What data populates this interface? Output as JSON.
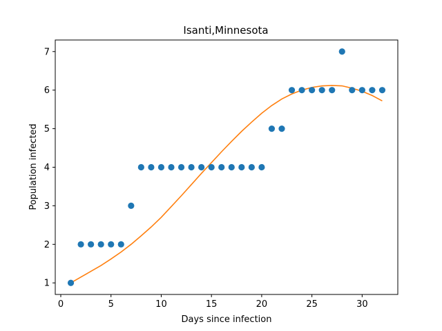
{
  "chart_data": {
    "type": "scatter",
    "title": "Isanti,Minnesota",
    "xlabel": "Days since infection",
    "ylabel": "Population infected",
    "xlim": [
      -0.55,
      33.55
    ],
    "ylim": [
      0.7,
      7.3
    ],
    "xticks": [
      0,
      5,
      10,
      15,
      20,
      25,
      30
    ],
    "yticks": [
      1,
      2,
      3,
      4,
      5,
      6,
      7
    ],
    "grid": false,
    "series": [
      {
        "kind": "scatter",
        "color": "#1f77b4",
        "x": [
          1,
          2,
          3,
          4,
          5,
          6,
          7,
          8,
          9,
          10,
          11,
          12,
          13,
          14,
          15,
          16,
          17,
          18,
          19,
          20,
          21,
          22,
          23,
          24,
          25,
          26,
          27,
          28,
          29,
          30,
          31,
          32
        ],
        "y": [
          1,
          2,
          2,
          2,
          2,
          2,
          3,
          4,
          4,
          4,
          4,
          4,
          4,
          4,
          4,
          4,
          4,
          4,
          4,
          4,
          5,
          5,
          6,
          6,
          6,
          6,
          6,
          7,
          6,
          6,
          6,
          6
        ]
      },
      {
        "kind": "line",
        "color": "#ff7f0e",
        "x": [
          1,
          2,
          3,
          4,
          5,
          6,
          7,
          8,
          9,
          10,
          11,
          12,
          13,
          14,
          15,
          16,
          17,
          18,
          19,
          20,
          21,
          22,
          23,
          24,
          25,
          26,
          27,
          28,
          29,
          30,
          31,
          32
        ],
        "y": [
          1.0,
          1.15,
          1.3,
          1.45,
          1.62,
          1.8,
          2.0,
          2.22,
          2.45,
          2.7,
          2.98,
          3.26,
          3.55,
          3.84,
          4.12,
          4.4,
          4.67,
          4.93,
          5.17,
          5.4,
          5.6,
          5.77,
          5.9,
          6.0,
          6.07,
          6.11,
          6.12,
          6.11,
          6.05,
          5.97,
          5.86,
          5.72
        ]
      }
    ]
  }
}
